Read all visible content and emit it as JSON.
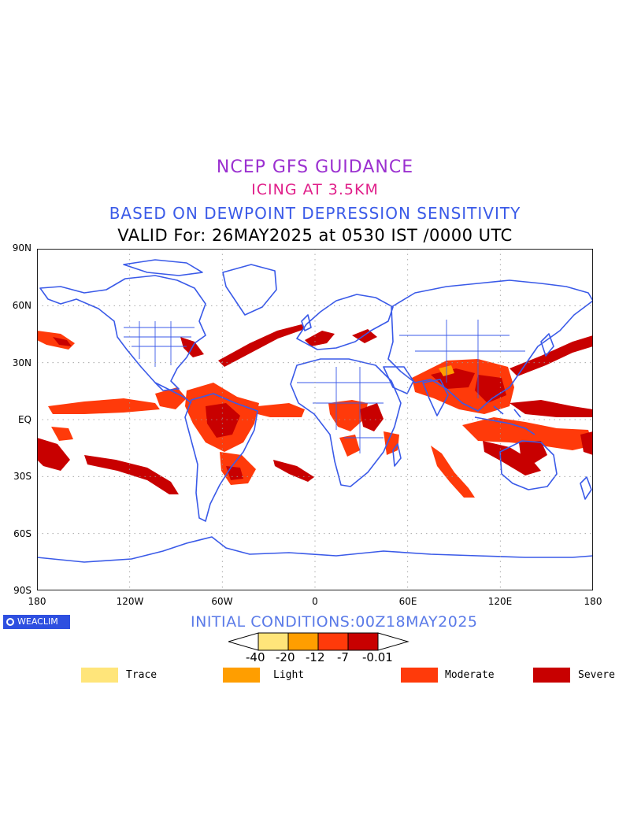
{
  "header": {
    "line1": "NCEP GFS GUIDANCE",
    "line2": "ICING AT 3.5KM",
    "line3": "BASED ON DEWPOINT DEPRESSION SENSITIVITY",
    "line4": "VALID For: 26MAY2025 at 0530 IST /0000 UTC"
  },
  "map": {
    "lat_labels": [
      "90N",
      "60N",
      "30N",
      "EQ",
      "30S",
      "60S",
      "90S"
    ],
    "lon_labels": [
      "180",
      "120W",
      "60W",
      "0",
      "60E",
      "120E",
      "180"
    ],
    "coast_color": "#3a5ae8",
    "grid": "dotted"
  },
  "footer": {
    "logo_text": "WEACLIM",
    "initial_conditions": "INITIAL CONDITIONS:00Z18MAY2025"
  },
  "colorbar": {
    "ticks": [
      "-40",
      "-20",
      "-12",
      "-7",
      "-0.01"
    ],
    "colors": [
      "#ffe57a",
      "#ff9e00",
      "#ff3a0a",
      "#c80000"
    ]
  },
  "legend": [
    {
      "label": "Trace",
      "color": "#ffe57a"
    },
    {
      "label": "Light",
      "color": "#ff9e00"
    },
    {
      "label": "Moderate",
      "color": "#ff3a0a"
    },
    {
      "label": "Severe",
      "color": "#c80000"
    }
  ]
}
